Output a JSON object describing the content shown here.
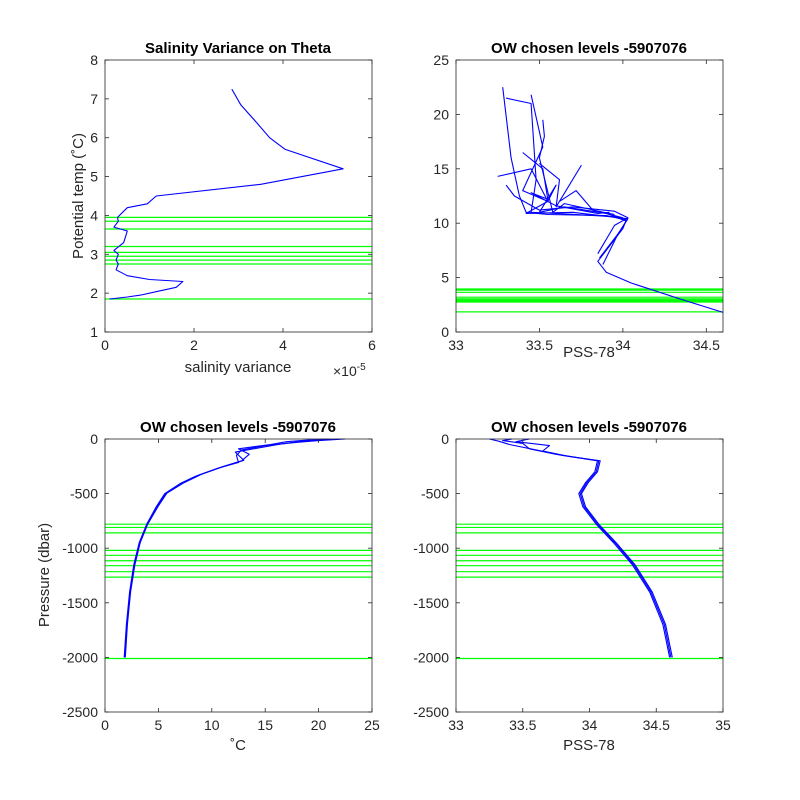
{
  "chart_data": [
    {
      "id": "p1",
      "type": "line",
      "title": "Salinity Variance on Theta",
      "xlabel": "salinity variance",
      "ylabel": "Potential temp (˚C)",
      "x_exponent": "×10",
      "x_exponent_power": "-5",
      "xlim": [
        0,
        6
      ],
      "ylim": [
        1,
        8
      ],
      "xticks": [
        0,
        2,
        4,
        6
      ],
      "yticks": [
        1,
        2,
        3,
        4,
        5,
        6,
        7,
        8
      ],
      "grid": false,
      "series": [
        {
          "color": "#0000ff",
          "x": [
            2.85,
            3.05,
            3.4,
            3.7,
            4.05,
            5.35,
            3.5,
            1.15,
            0.95,
            0.5,
            0.28,
            0.3,
            0.2,
            0.5,
            0.42,
            0.2,
            0.3,
            0.25,
            0.3,
            0.25,
            0.5,
            1.0,
            1.75,
            1.6,
            1.2,
            0.8,
            0.5,
            0.1
          ],
          "y": [
            7.25,
            6.85,
            6.4,
            6.0,
            5.7,
            5.2,
            4.8,
            4.5,
            4.3,
            4.2,
            3.95,
            3.85,
            3.7,
            3.6,
            3.3,
            3.1,
            3.0,
            2.85,
            2.75,
            2.6,
            2.45,
            2.35,
            2.3,
            2.15,
            2.05,
            1.95,
            1.9,
            1.85
          ]
        }
      ],
      "hlines": [
        3.95,
        3.85,
        3.65,
        3.2,
        3.05,
        2.95,
        2.85,
        2.75,
        1.85
      ],
      "hline_color": "#00ff00"
    },
    {
      "id": "p2",
      "type": "line",
      "title": "OW chosen levels -5907076",
      "xlabel": "PSS-78",
      "ylabel": "",
      "xlim": [
        33,
        34.6
      ],
      "ylim": [
        0,
        25
      ],
      "xticks": [
        33,
        33.5,
        34,
        34.5
      ],
      "yticks": [
        0,
        5,
        10,
        15,
        20,
        25
      ],
      "grid": false,
      "series": [
        {
          "color": "#0000ff",
          "x": [
            33.28,
            33.33,
            33.38,
            33.42,
            33.55,
            33.9,
            34.02,
            34.0,
            33.85,
            33.9,
            34.05,
            34.35,
            34.6
          ],
          "y": [
            22.5,
            16,
            12.5,
            11,
            10.8,
            10.7,
            10.3,
            9.5,
            6.5,
            5.5,
            4.5,
            3,
            1.8
          ]
        },
        {
          "color": "#0000ff",
          "x": [
            33.3,
            33.45,
            33.48,
            33.45,
            33.6,
            33.95,
            34.02,
            33.98,
            33.86
          ],
          "y": [
            21.5,
            21,
            14,
            11,
            10.9,
            10.6,
            10.2,
            9.2,
            6.8
          ]
        },
        {
          "color": "#0000ff",
          "x": [
            33.45,
            33.52,
            33.4,
            33.55,
            33.42,
            33.7,
            34.03,
            33.97,
            33.88
          ],
          "y": [
            21.8,
            17,
            13,
            12,
            10.9,
            11,
            10.4,
            9,
            6.2
          ]
        },
        {
          "color": "#0000ff",
          "x": [
            33.25,
            33.45,
            33.55,
            33.6,
            33.5,
            33.65,
            33.9,
            34.01
          ],
          "y": [
            14.3,
            15,
            12,
            13.5,
            11,
            11.5,
            10.9,
            10.3
          ]
        },
        {
          "color": "#0000ff",
          "x": [
            33.5,
            33.62,
            33.6,
            33.75,
            33.62,
            33.72,
            33.82,
            33.95
          ],
          "y": [
            15.5,
            14,
            11.5,
            15.3,
            12,
            13,
            11.2,
            10.8
          ]
        },
        {
          "color": "#0000ff",
          "x": [
            33.52,
            33.53,
            33.5,
            33.58,
            33.65,
            33.8,
            34.0
          ],
          "y": [
            19.5,
            18,
            16,
            11,
            11.8,
            11.3,
            10.5
          ]
        },
        {
          "color": "#0000ff",
          "x": [
            33.3,
            33.35,
            33.5,
            33.7,
            33.95,
            34.03,
            33.95,
            33.85
          ],
          "y": [
            13.5,
            12.5,
            11.2,
            11.5,
            11.1,
            10.5,
            9.8,
            7.2
          ]
        },
        {
          "color": "#0000ff",
          "x": [
            33.4,
            33.52,
            33.55,
            33.45,
            33.6,
            33.85,
            33.92
          ],
          "y": [
            16.5,
            15,
            12.2,
            12.8,
            11.6,
            10.9,
            11.0
          ]
        }
      ],
      "hlines": [
        3.95,
        3.85,
        3.65,
        3.2,
        3.05,
        2.95,
        2.85,
        2.75,
        1.85
      ],
      "hline_color": "#00ff00"
    },
    {
      "id": "p3",
      "type": "line",
      "title": "OW chosen levels -5907076",
      "xlabel": "˚C",
      "ylabel": "Pressure (dbar)",
      "xlim": [
        0,
        25
      ],
      "ylim": [
        -2500,
        0
      ],
      "xticks": [
        0,
        5,
        10,
        15,
        20,
        25
      ],
      "yticks": [
        0,
        -500,
        -1000,
        -1500,
        -2000,
        -2500
      ],
      "grid": false,
      "series": [
        {
          "color": "#0000ff",
          "x": [
            1.8,
            2.0,
            2.3,
            2.7,
            3.2,
            3.9,
            4.8,
            5.6,
            7.0,
            8.5,
            10.5,
            12.5,
            12.3,
            12.8,
            15,
            18,
            20,
            22.5
          ],
          "y": [
            -2000,
            -1700,
            -1400,
            -1150,
            -950,
            -780,
            -620,
            -500,
            -410,
            -340,
            -270,
            -215,
            -150,
            -100,
            -60,
            -30,
            -15,
            0
          ]
        },
        {
          "color": "#0000ff",
          "x": [
            1.85,
            2.05,
            2.35,
            2.75,
            3.25,
            3.95,
            4.85,
            5.7,
            7.2,
            8.8,
            10.8,
            12.8,
            13.5,
            12.5,
            15.5,
            17,
            19,
            21
          ],
          "y": [
            -2000,
            -1700,
            -1400,
            -1150,
            -950,
            -780,
            -620,
            -500,
            -400,
            -330,
            -260,
            -200,
            -140,
            -90,
            -50,
            -25,
            -10,
            0
          ]
        },
        {
          "color": "#0000ff",
          "x": [
            1.9,
            2.1,
            2.4,
            2.8,
            3.3,
            4.0,
            4.95,
            5.8,
            7.4,
            9.0,
            11.0,
            13.0,
            12.2,
            14.5,
            16.5,
            18.5,
            20.5,
            22
          ],
          "y": [
            -2000,
            -1700,
            -1400,
            -1150,
            -950,
            -780,
            -620,
            -495,
            -400,
            -325,
            -255,
            -195,
            -120,
            -80,
            -45,
            -20,
            -8,
            0
          ]
        }
      ],
      "hlines": [
        -780,
        -810,
        -860,
        -1020,
        -1065,
        -1115,
        -1160,
        -1215,
        -1265,
        -2010
      ],
      "hline_color": "#00ff00"
    },
    {
      "id": "p4",
      "type": "line",
      "title": "OW chosen levels -5907076",
      "xlabel": "PSS-78",
      "ylabel": "",
      "xlim": [
        33,
        35
      ],
      "ylim": [
        -2500,
        0
      ],
      "xticks": [
        33,
        33.5,
        34,
        34.5,
        35
      ],
      "yticks": [
        0,
        -500,
        -1000,
        -1500,
        -2000,
        -2500
      ],
      "grid": false,
      "series": [
        {
          "color": "#0000ff",
          "x": [
            34.6,
            34.55,
            34.45,
            34.32,
            34.18,
            34.05,
            33.95,
            33.92,
            33.97,
            34.04,
            34.06,
            33.8,
            33.6,
            33.4,
            33.32,
            33.25
          ],
          "y": [
            -2000,
            -1700,
            -1400,
            -1150,
            -950,
            -780,
            -620,
            -500,
            -400,
            -300,
            -200,
            -150,
            -100,
            -50,
            -20,
            0
          ]
        },
        {
          "color": "#0000ff",
          "x": [
            34.61,
            34.56,
            34.46,
            34.33,
            34.19,
            34.06,
            33.96,
            33.93,
            33.98,
            34.05,
            34.07,
            33.75,
            33.55,
            33.5,
            33.35,
            33.42
          ],
          "y": [
            -2000,
            -1700,
            -1400,
            -1150,
            -950,
            -780,
            -620,
            -500,
            -400,
            -300,
            -200,
            -140,
            -90,
            -40,
            -15,
            0
          ]
        },
        {
          "color": "#0000ff",
          "x": [
            34.62,
            34.57,
            34.47,
            34.34,
            34.2,
            34.07,
            33.97,
            33.94,
            33.99,
            34.06,
            34.08,
            33.85,
            33.65,
            33.7,
            33.45,
            33.55
          ],
          "y": [
            -2000,
            -1700,
            -1400,
            -1150,
            -950,
            -780,
            -620,
            -500,
            -400,
            -300,
            -200,
            -160,
            -110,
            -60,
            -25,
            0
          ]
        }
      ],
      "hlines": [
        -780,
        -810,
        -860,
        -1020,
        -1065,
        -1115,
        -1160,
        -1215,
        -1265,
        -2010
      ],
      "hline_color": "#00ff00"
    }
  ]
}
